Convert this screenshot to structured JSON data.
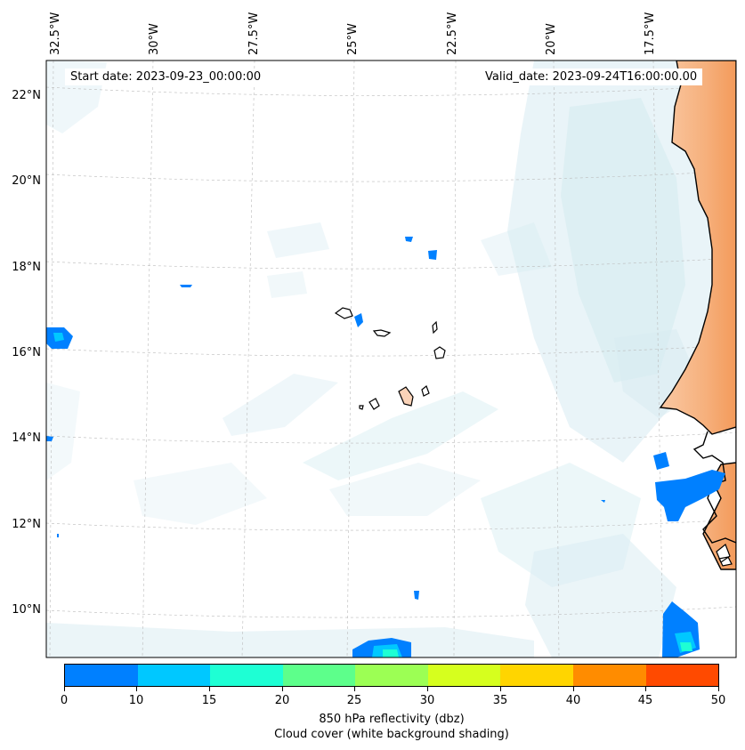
{
  "header": {
    "start_date": "Start date: 2023-09-23_00:00:00",
    "valid_date": "Valid_date: 2023-09-24T16:00:00.00"
  },
  "map": {
    "longitude_labels": [
      "32.5°W",
      "30°W",
      "27.5°W",
      "25°W",
      "22.5°W",
      "20°W",
      "17.5°W"
    ],
    "latitude_labels": [
      "22°N",
      "20°N",
      "18°N",
      "16°N",
      "14°N",
      "12°N",
      "10°N"
    ],
    "land_color": "#f7a96e",
    "ocean_shading_color": "#bfe1ea",
    "reflectivity_color_low": "#0080ff",
    "gridlines": "dashed"
  },
  "colorbar": {
    "ticks": [
      "0",
      "10",
      "15",
      "20",
      "25",
      "30",
      "35",
      "40",
      "45",
      "50"
    ],
    "colors": [
      "#0080ff",
      "#00c8ff",
      "#1effd4",
      "#5dff8b",
      "#9cff54",
      "#d6ff1e",
      "#ffd500",
      "#ff8c00",
      "#ff4a00"
    ],
    "label": "850 hPa reflectivity (dbz)",
    "sublabel": "Cloud cover (white background shading)"
  }
}
